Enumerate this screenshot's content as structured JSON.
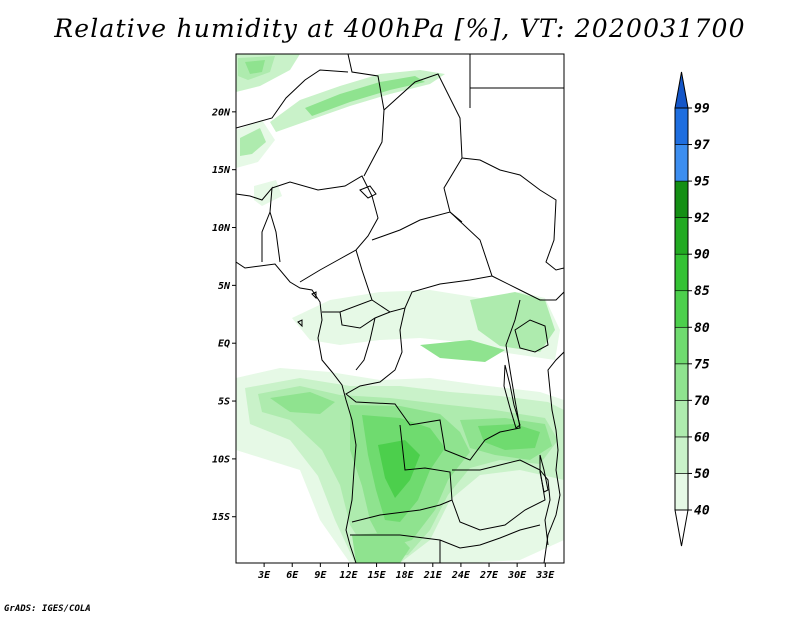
{
  "title": "Relative humidity at 400hPa [%], VT: 2020031700",
  "credit": "GrADS: IGES/COLA",
  "map": {
    "lon_min": 0,
    "lon_max": 35,
    "lat_min": -19,
    "lat_max": 25,
    "lat_ticks": [
      {
        "lat": 20,
        "label": "20N"
      },
      {
        "lat": 15,
        "label": "15N"
      },
      {
        "lat": 10,
        "label": "10N"
      },
      {
        "lat": 5,
        "label": "5N"
      },
      {
        "lat": 0,
        "label": "EQ"
      },
      {
        "lat": -5,
        "label": "5S"
      },
      {
        "lat": -10,
        "label": "10S"
      },
      {
        "lat": -15,
        "label": "15S"
      }
    ],
    "lon_ticks": [
      {
        "lon": 3,
        "label": "3E"
      },
      {
        "lon": 6,
        "label": "6E"
      },
      {
        "lon": 9,
        "label": "9E"
      },
      {
        "lon": 12,
        "label": "12E"
      },
      {
        "lon": 15,
        "label": "15E"
      },
      {
        "lon": 18,
        "label": "18E"
      },
      {
        "lon": 21,
        "label": "21E"
      },
      {
        "lon": 24,
        "label": "24E"
      },
      {
        "lon": 27,
        "label": "27E"
      },
      {
        "lon": 30,
        "label": "30E"
      },
      {
        "lon": 33,
        "label": "33E"
      }
    ]
  },
  "colorbar": {
    "colors": [
      "#ffffff",
      "#e6f9e6",
      "#c9f2c9",
      "#aeebae",
      "#8fe38f",
      "#6fdb6f",
      "#4ccf4c",
      "#34c234",
      "#22aa22",
      "#148f14",
      "#3c8ef0",
      "#1e6ee0",
      "#1456c8"
    ],
    "labels": [
      "40",
      "50",
      "60",
      "70",
      "75",
      "80",
      "85",
      "90",
      "92",
      "95",
      "97",
      "99"
    ]
  }
}
